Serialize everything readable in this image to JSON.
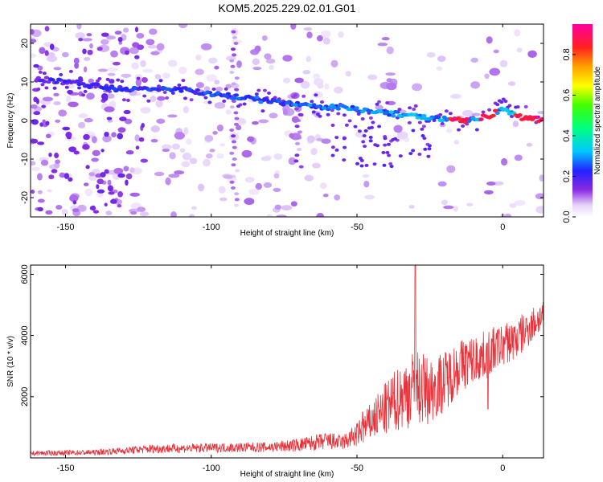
{
  "title": "KOM5.2025.229.02.01.G01",
  "colors": {
    "snr_line": "#e8323a",
    "axis": "#000000",
    "background": "#ffffff"
  },
  "chart_data": [
    {
      "type": "heatmap",
      "xlabel": "Height of straight line (km)",
      "ylabel": "Frequency (Hz)",
      "xlim": [
        -162,
        14
      ],
      "ylim": [
        -25,
        25
      ],
      "x_ticks": [
        -150,
        -100,
        -50,
        0
      ],
      "y_ticks": [
        -20,
        -10,
        0,
        10,
        20
      ],
      "colorbar": {
        "label": "Normalized spectral amplitude",
        "range": [
          0,
          0.95
        ],
        "ticks": [
          0.0,
          0.2,
          0.4,
          0.6,
          0.8
        ]
      },
      "ridge": {
        "description_points_x": [
          -162,
          -150,
          -130,
          -110,
          -90,
          -70,
          -50,
          -30,
          -15,
          -5,
          0,
          5,
          14
        ],
        "description_points_y": [
          11,
          10,
          8,
          8,
          6,
          4,
          3,
          1,
          0,
          1,
          3,
          1,
          0
        ],
        "peak_amplitude_x": [
          -15,
          -5,
          7,
          12
        ]
      }
    },
    {
      "type": "line",
      "xlabel": "Height of straight line (km)",
      "ylabel": "SNR (10 * v/v)",
      "xlim": [
        -162,
        14
      ],
      "ylim": [
        0,
        6300
      ],
      "x_ticks": [
        -150,
        -100,
        -50,
        0
      ],
      "y_ticks": [
        2000,
        4000,
        6000
      ],
      "envelope": {
        "x": [
          -162,
          -140,
          -120,
          -100,
          -80,
          -70,
          -60,
          -55,
          -50,
          -45,
          -40,
          -35,
          -30,
          -25,
          -20,
          -15,
          -10,
          -5,
          0,
          5,
          14
        ],
        "mean": [
          150,
          180,
          300,
          330,
          350,
          420,
          550,
          500,
          750,
          1200,
          1600,
          2000,
          2300,
          2200,
          2500,
          3000,
          3200,
          3400,
          3700,
          3900,
          4700
        ],
        "spread": [
          80,
          90,
          150,
          150,
          170,
          220,
          300,
          250,
          400,
          650,
          900,
          1100,
          1300,
          1100,
          1000,
          900,
          800,
          800,
          700,
          700,
          500
        ]
      },
      "spikes": [
        {
          "x": -30,
          "y": 6300
        },
        {
          "x": -48,
          "y": 1500
        },
        {
          "x": -5,
          "y": 1600
        }
      ]
    }
  ]
}
